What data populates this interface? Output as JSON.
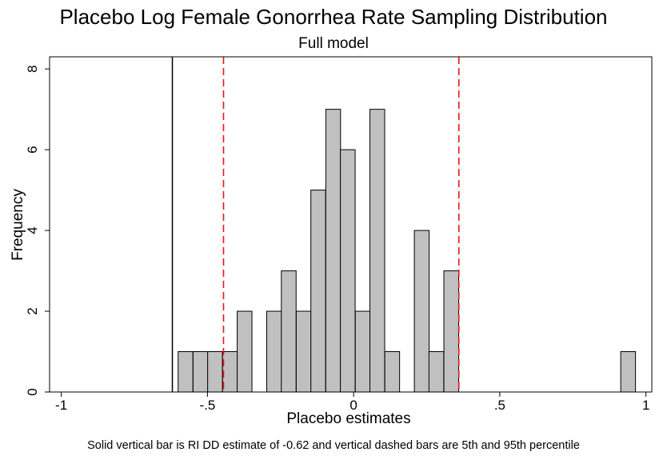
{
  "chart_data": {
    "type": "bar",
    "title": "Placebo Log Female Gonorrhea Rate Sampling Distribution",
    "subtitle": "Full model",
    "xlabel": "Placebo estimates",
    "ylabel": "Frequency",
    "note": "Solid vertical bar is RI DD estimate of -0.62 and vertical dashed bars are 5th and 95th percentile",
    "xlim": [
      -1.04,
      1.02
    ],
    "ylim": [
      0,
      8.3
    ],
    "x_ticks": [
      -1,
      -0.5,
      0,
      0.5,
      1
    ],
    "x_tick_labels": [
      "-1",
      "-.5",
      "0",
      ".5",
      "1"
    ],
    "y_ticks": [
      0,
      2,
      4,
      6,
      8
    ],
    "y_tick_labels": [
      "0",
      "2",
      "4",
      "6",
      "8"
    ],
    "bin_width": 0.0505,
    "bins": [
      {
        "x": -0.575,
        "value": 1
      },
      {
        "x": -0.524,
        "value": 1
      },
      {
        "x": -0.474,
        "value": 1
      },
      {
        "x": -0.423,
        "value": 1
      },
      {
        "x": -0.373,
        "value": 2
      },
      {
        "x": -0.272,
        "value": 2
      },
      {
        "x": -0.222,
        "value": 3
      },
      {
        "x": -0.171,
        "value": 2
      },
      {
        "x": -0.121,
        "value": 5
      },
      {
        "x": -0.07,
        "value": 7
      },
      {
        "x": -0.02,
        "value": 6
      },
      {
        "x": 0.031,
        "value": 2
      },
      {
        "x": 0.081,
        "value": 7
      },
      {
        "x": 0.132,
        "value": 1
      },
      {
        "x": 0.233,
        "value": 4
      },
      {
        "x": 0.283,
        "value": 1
      },
      {
        "x": 0.334,
        "value": 3
      },
      {
        "x": 0.939,
        "value": 1
      }
    ],
    "reference_lines": [
      {
        "x": -0.62,
        "style": "solid",
        "color": "#000000"
      },
      {
        "x": -0.445,
        "style": "dashed",
        "color": "#e8141a"
      },
      {
        "x": 0.36,
        "style": "dashed",
        "color": "#e8141a"
      }
    ],
    "bar_fill": "#c0c0c0",
    "bar_stroke": "#000000",
    "grid": false,
    "legend": "none"
  }
}
